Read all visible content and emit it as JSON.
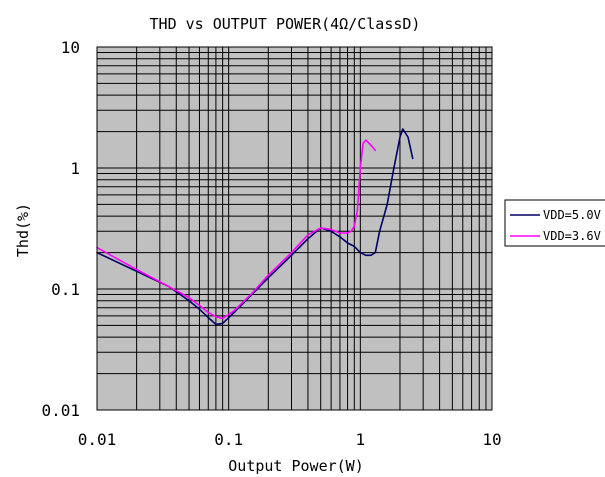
{
  "chart_data": {
    "type": "line",
    "title": "THD vs OUTPUT POWER(4Ω/ClassD)",
    "xlabel": "Output Power(W)",
    "ylabel": "Thd(%)",
    "x_scale": "log",
    "y_scale": "log",
    "xlim": [
      0.01,
      10
    ],
    "ylim": [
      0.01,
      10
    ],
    "x_ticks": [
      "0.01",
      "0.1",
      "1",
      "10"
    ],
    "y_ticks": [
      "10",
      "1",
      "0.1",
      "0.01"
    ],
    "grid": true,
    "plot_background": "#c0c0c0",
    "legend_position": "right",
    "series": [
      {
        "name": "VDD=5.0V",
        "color": "#000066",
        "x": [
          0.01,
          0.02,
          0.035,
          0.05,
          0.06,
          0.07,
          0.08,
          0.09,
          0.11,
          0.15,
          0.2,
          0.3,
          0.4,
          0.5,
          0.6,
          0.7,
          0.8,
          0.9,
          1.0,
          1.1,
          1.2,
          1.3,
          1.4,
          1.6,
          1.8,
          2.0,
          2.1,
          2.3,
          2.5
        ],
        "y": [
          0.2,
          0.14,
          0.105,
          0.08,
          0.068,
          0.058,
          0.051,
          0.052,
          0.064,
          0.09,
          0.124,
          0.19,
          0.26,
          0.32,
          0.3,
          0.27,
          0.24,
          0.225,
          0.2,
          0.19,
          0.19,
          0.2,
          0.3,
          0.5,
          1.0,
          1.8,
          2.1,
          1.8,
          1.2
        ]
      },
      {
        "name": "VDD=3.6V",
        "color": "#ff00ff",
        "x": [
          0.01,
          0.02,
          0.035,
          0.05,
          0.06,
          0.07,
          0.08,
          0.09,
          0.11,
          0.15,
          0.2,
          0.3,
          0.4,
          0.5,
          0.6,
          0.7,
          0.8,
          0.85,
          0.9,
          0.95,
          1.0,
          1.05,
          1.1,
          1.2,
          1.3
        ],
        "y": [
          0.22,
          0.145,
          0.105,
          0.085,
          0.073,
          0.064,
          0.059,
          0.057,
          0.066,
          0.092,
          0.13,
          0.2,
          0.28,
          0.32,
          0.31,
          0.29,
          0.29,
          0.3,
          0.33,
          0.45,
          1.0,
          1.6,
          1.7,
          1.55,
          1.4
        ]
      }
    ]
  }
}
